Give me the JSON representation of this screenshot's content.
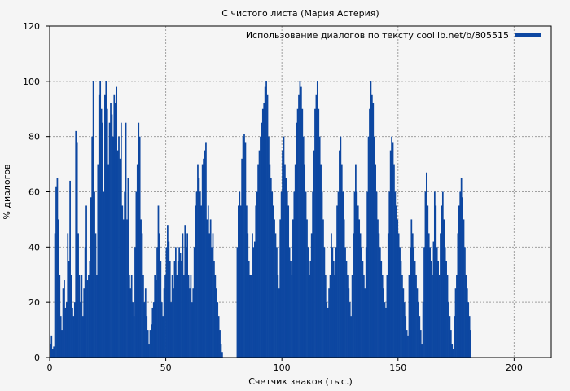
{
  "chart_data": {
    "type": "bar",
    "title": "С чистого листа (Мария Астерия)",
    "xlabel": "Счетчик знаков (тыс.)",
    "ylabel": "% диалогов",
    "xlim": [
      0,
      216
    ],
    "ylim": [
      0,
      120
    ],
    "xticks": [
      "0",
      "50",
      "100",
      "150",
      "200"
    ],
    "yticks": [
      "0",
      "20",
      "40",
      "60",
      "80",
      "100",
      "120"
    ],
    "grid": true,
    "legend_position": "top-right",
    "colors": {
      "bar": "#0d47a1",
      "background": "#f5f5f5",
      "grid": "#a0a0a0"
    },
    "series": [
      {
        "name": "Использование диалогов по тексту coollib.net/b/805515",
        "x_step": 0.5,
        "values": [
          5,
          8,
          3,
          4,
          45,
          62,
          65,
          50,
          30,
          15,
          10,
          25,
          28,
          18,
          20,
          45,
          35,
          64,
          30,
          18,
          15,
          20,
          82,
          78,
          45,
          30,
          20,
          30,
          15,
          25,
          40,
          55,
          28,
          30,
          35,
          58,
          80,
          100,
          60,
          45,
          30,
          70,
          95,
          100,
          90,
          85,
          60,
          95,
          100,
          90,
          70,
          85,
          92,
          88,
          80,
          95,
          92,
          98,
          75,
          80,
          72,
          85,
          55,
          50,
          60,
          85,
          50,
          65,
          30,
          25,
          30,
          20,
          15,
          40,
          60,
          70,
          85,
          80,
          50,
          45,
          30,
          20,
          25,
          15,
          10,
          5,
          10,
          12,
          18,
          20,
          30,
          28,
          40,
          55,
          45,
          35,
          20,
          15,
          25,
          30,
          40,
          48,
          42,
          35,
          20,
          30,
          25,
          35,
          40,
          30,
          35,
          40,
          38,
          35,
          45,
          30,
          48,
          40,
          45,
          30,
          25,
          30,
          20,
          25,
          40,
          55,
          60,
          70,
          65,
          60,
          55,
          70,
          72,
          75,
          78,
          50,
          55,
          45,
          50,
          40,
          45,
          35,
          30,
          25,
          20,
          15,
          10,
          5,
          2,
          0,
          0,
          0,
          0,
          0,
          0,
          0,
          0,
          0,
          0,
          0,
          0,
          40,
          55,
          60,
          55,
          72,
          80,
          81,
          78,
          55,
          45,
          35,
          30,
          30,
          45,
          40,
          42,
          55,
          60,
          70,
          75,
          80,
          85,
          90,
          92,
          98,
          100,
          95,
          80,
          70,
          65,
          60,
          55,
          50,
          45,
          40,
          30,
          25,
          50,
          60,
          75,
          80,
          70,
          65,
          60,
          55,
          40,
          35,
          30,
          50,
          60,
          70,
          85,
          90,
          95,
          100,
          98,
          90,
          80,
          70,
          60,
          50,
          40,
          30,
          35,
          45,
          60,
          75,
          90,
          95,
          100,
          90,
          80,
          70,
          60,
          50,
          40,
          30,
          20,
          18,
          25,
          30,
          45,
          40,
          35,
          30,
          40,
          55,
          60,
          75,
          80,
          70,
          60,
          50,
          40,
          35,
          30,
          25,
          20,
          15,
          30,
          45,
          60,
          70,
          60,
          55,
          50,
          45,
          40,
          35,
          30,
          25,
          40,
          60,
          80,
          90,
          100,
          95,
          92,
          80,
          70,
          60,
          50,
          45,
          40,
          35,
          30,
          25,
          20,
          18,
          30,
          45,
          60,
          75,
          80,
          78,
          70,
          60,
          55,
          50,
          45,
          40,
          35,
          30,
          25,
          20,
          15,
          10,
          8,
          30,
          40,
          50,
          45,
          40,
          35,
          30,
          25,
          20,
          15,
          10,
          5,
          20,
          40,
          60,
          67,
          55,
          45,
          40,
          35,
          30,
          42,
          60,
          55,
          40,
          35,
          30,
          45,
          55,
          60,
          50,
          40,
          35,
          30,
          20,
          15,
          10,
          5,
          3,
          15,
          25,
          30,
          45,
          55,
          60,
          65,
          58,
          50,
          40,
          30,
          25,
          20,
          15,
          10
        ]
      }
    ]
  }
}
